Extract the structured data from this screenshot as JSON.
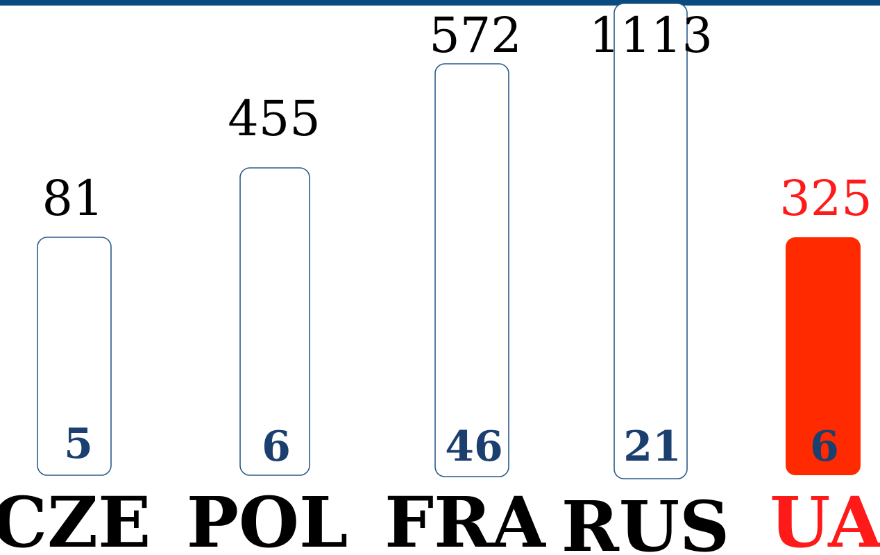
{
  "columns": [
    {
      "label": "CZE",
      "total": "81",
      "count": "5"
    },
    {
      "label": "POL",
      "total": "455",
      "count": "6"
    },
    {
      "label": "FRA",
      "total": "572",
      "count": "46"
    },
    {
      "label": "RUS",
      "total": "1113",
      "count": "21"
    },
    {
      "label": "UA",
      "total": "325",
      "count": "6"
    }
  ]
}
